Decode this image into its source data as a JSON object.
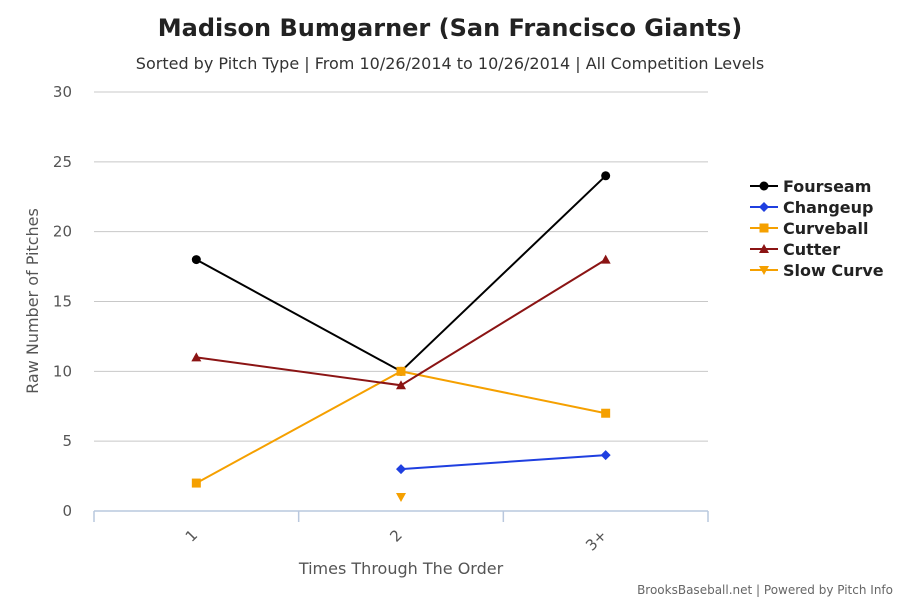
{
  "chart_data": {
    "type": "line",
    "title": "Madison Bumgarner (San Francisco Giants)",
    "subtitle": "Sorted by Pitch Type | From 10/26/2014 to 10/26/2014 | All Competition Levels",
    "xlabel": "Times Through The Order",
    "ylabel": "Raw Number of Pitches",
    "categories": [
      "1",
      "2",
      "3+"
    ],
    "ylim": [
      0,
      30
    ],
    "yticks": [
      "0",
      "5",
      "10",
      "15",
      "20",
      "25",
      "30"
    ],
    "grid": true,
    "legend_position": "right",
    "series": [
      {
        "name": "Fourseam",
        "color": "#000000",
        "marker": "circle",
        "values": [
          18,
          10,
          24
        ]
      },
      {
        "name": "Changeup",
        "color": "#1f3fe0",
        "marker": "diamond",
        "values": [
          null,
          3,
          4
        ]
      },
      {
        "name": "Curveball",
        "color": "#f5a000",
        "marker": "square",
        "values": [
          2,
          10,
          7
        ]
      },
      {
        "name": "Cutter",
        "color": "#8b1414",
        "marker": "triangle",
        "values": [
          11,
          9,
          18
        ]
      },
      {
        "name": "Slow Curve",
        "color": "#f5a000",
        "marker": "triangle-down",
        "values": [
          null,
          1,
          null
        ]
      }
    ]
  },
  "credits": "BrooksBaseball.net | Powered by Pitch Info"
}
